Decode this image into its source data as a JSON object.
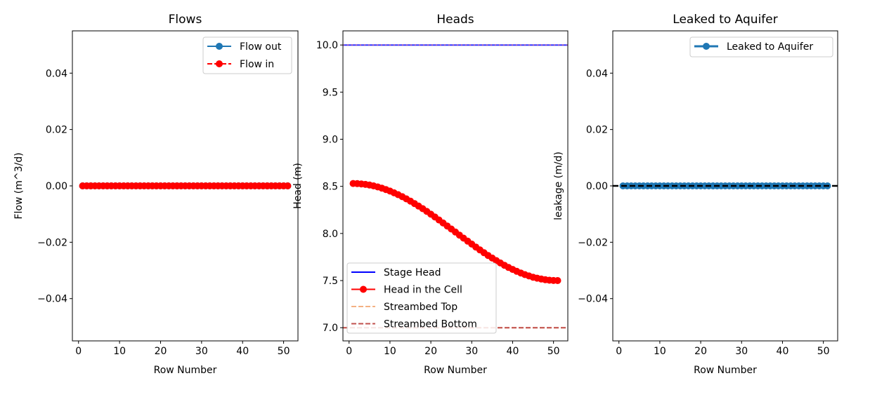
{
  "chart_data": [
    {
      "type": "line",
      "title": "Flows",
      "xlabel": "Row Number",
      "ylabel": "Flow (m^3/d)",
      "xlim": [
        -1.5,
        53.5
      ],
      "ylim": [
        -0.055,
        0.055
      ],
      "xticks": [
        0,
        10,
        20,
        30,
        40,
        50
      ],
      "yticks": [
        -0.04,
        -0.02,
        0.0,
        0.02,
        0.04
      ],
      "ytick_labels": [
        "−0.04",
        "−0.02",
        "0.00",
        "0.02",
        "0.04"
      ],
      "grid": false,
      "legend_position": "upper right",
      "x_start": 1,
      "x_end": 51,
      "series": [
        {
          "name": "Flow out",
          "color": "#1f77b4",
          "style": "solid",
          "marker": "circle",
          "constant": 0.0
        },
        {
          "name": "Flow in",
          "color": "#ff0000",
          "style": "dashed",
          "marker": "circle",
          "constant": 0.0
        }
      ]
    },
    {
      "type": "line",
      "title": "Heads",
      "xlabel": "Row Number",
      "ylabel": "Head (m)",
      "xlim": [
        -1.5,
        53.5
      ],
      "ylim": [
        6.86,
        10.15
      ],
      "xticks": [
        0,
        10,
        20,
        30,
        40,
        50
      ],
      "yticks": [
        7.0,
        7.5,
        8.0,
        8.5,
        9.0,
        9.5,
        10.0
      ],
      "ytick_labels": [
        "7.0",
        "7.5",
        "8.0",
        "8.5",
        "9.0",
        "9.5",
        "10.0"
      ],
      "grid": false,
      "legend_position": "lower left",
      "x_start": 1,
      "x_end": 51,
      "series": [
        {
          "name": "Stage Head",
          "color": "#0000ff",
          "style": "solid",
          "marker": "none",
          "constant": 10.0
        },
        {
          "name": "Head in the Cell",
          "color": "#ff0000",
          "style": "solid",
          "marker": "circle",
          "start": 8.53,
          "end": 7.5,
          "curve": "sigmoid"
        },
        {
          "name": "Streambed Top",
          "color": "#f4b183",
          "style": "dashed",
          "marker": "none",
          "constant": 7.0
        },
        {
          "name": "Streambed Bottom",
          "color": "#c0504d",
          "style": "dashed",
          "marker": "none",
          "constant": 7.0
        }
      ]
    },
    {
      "type": "line",
      "title": "Leaked to Aquifer",
      "xlabel": "Row Number",
      "ylabel": "leakage (m/d)",
      "xlim": [
        -1.5,
        53.5
      ],
      "ylim": [
        -0.055,
        0.055
      ],
      "xticks": [
        0,
        10,
        20,
        30,
        40,
        50
      ],
      "yticks": [
        -0.04,
        -0.02,
        0.0,
        0.02,
        0.04
      ],
      "ytick_labels": [
        "−0.04",
        "−0.02",
        "0.00",
        "0.02",
        "0.04"
      ],
      "grid": false,
      "legend_position": "upper right",
      "zero_line": true,
      "x_start": 1,
      "x_end": 51,
      "series": [
        {
          "name": "Leaked to Aquifer",
          "color": "#1f77b4",
          "style": "solid",
          "marker": "circle",
          "constant": 0.0
        }
      ]
    }
  ]
}
